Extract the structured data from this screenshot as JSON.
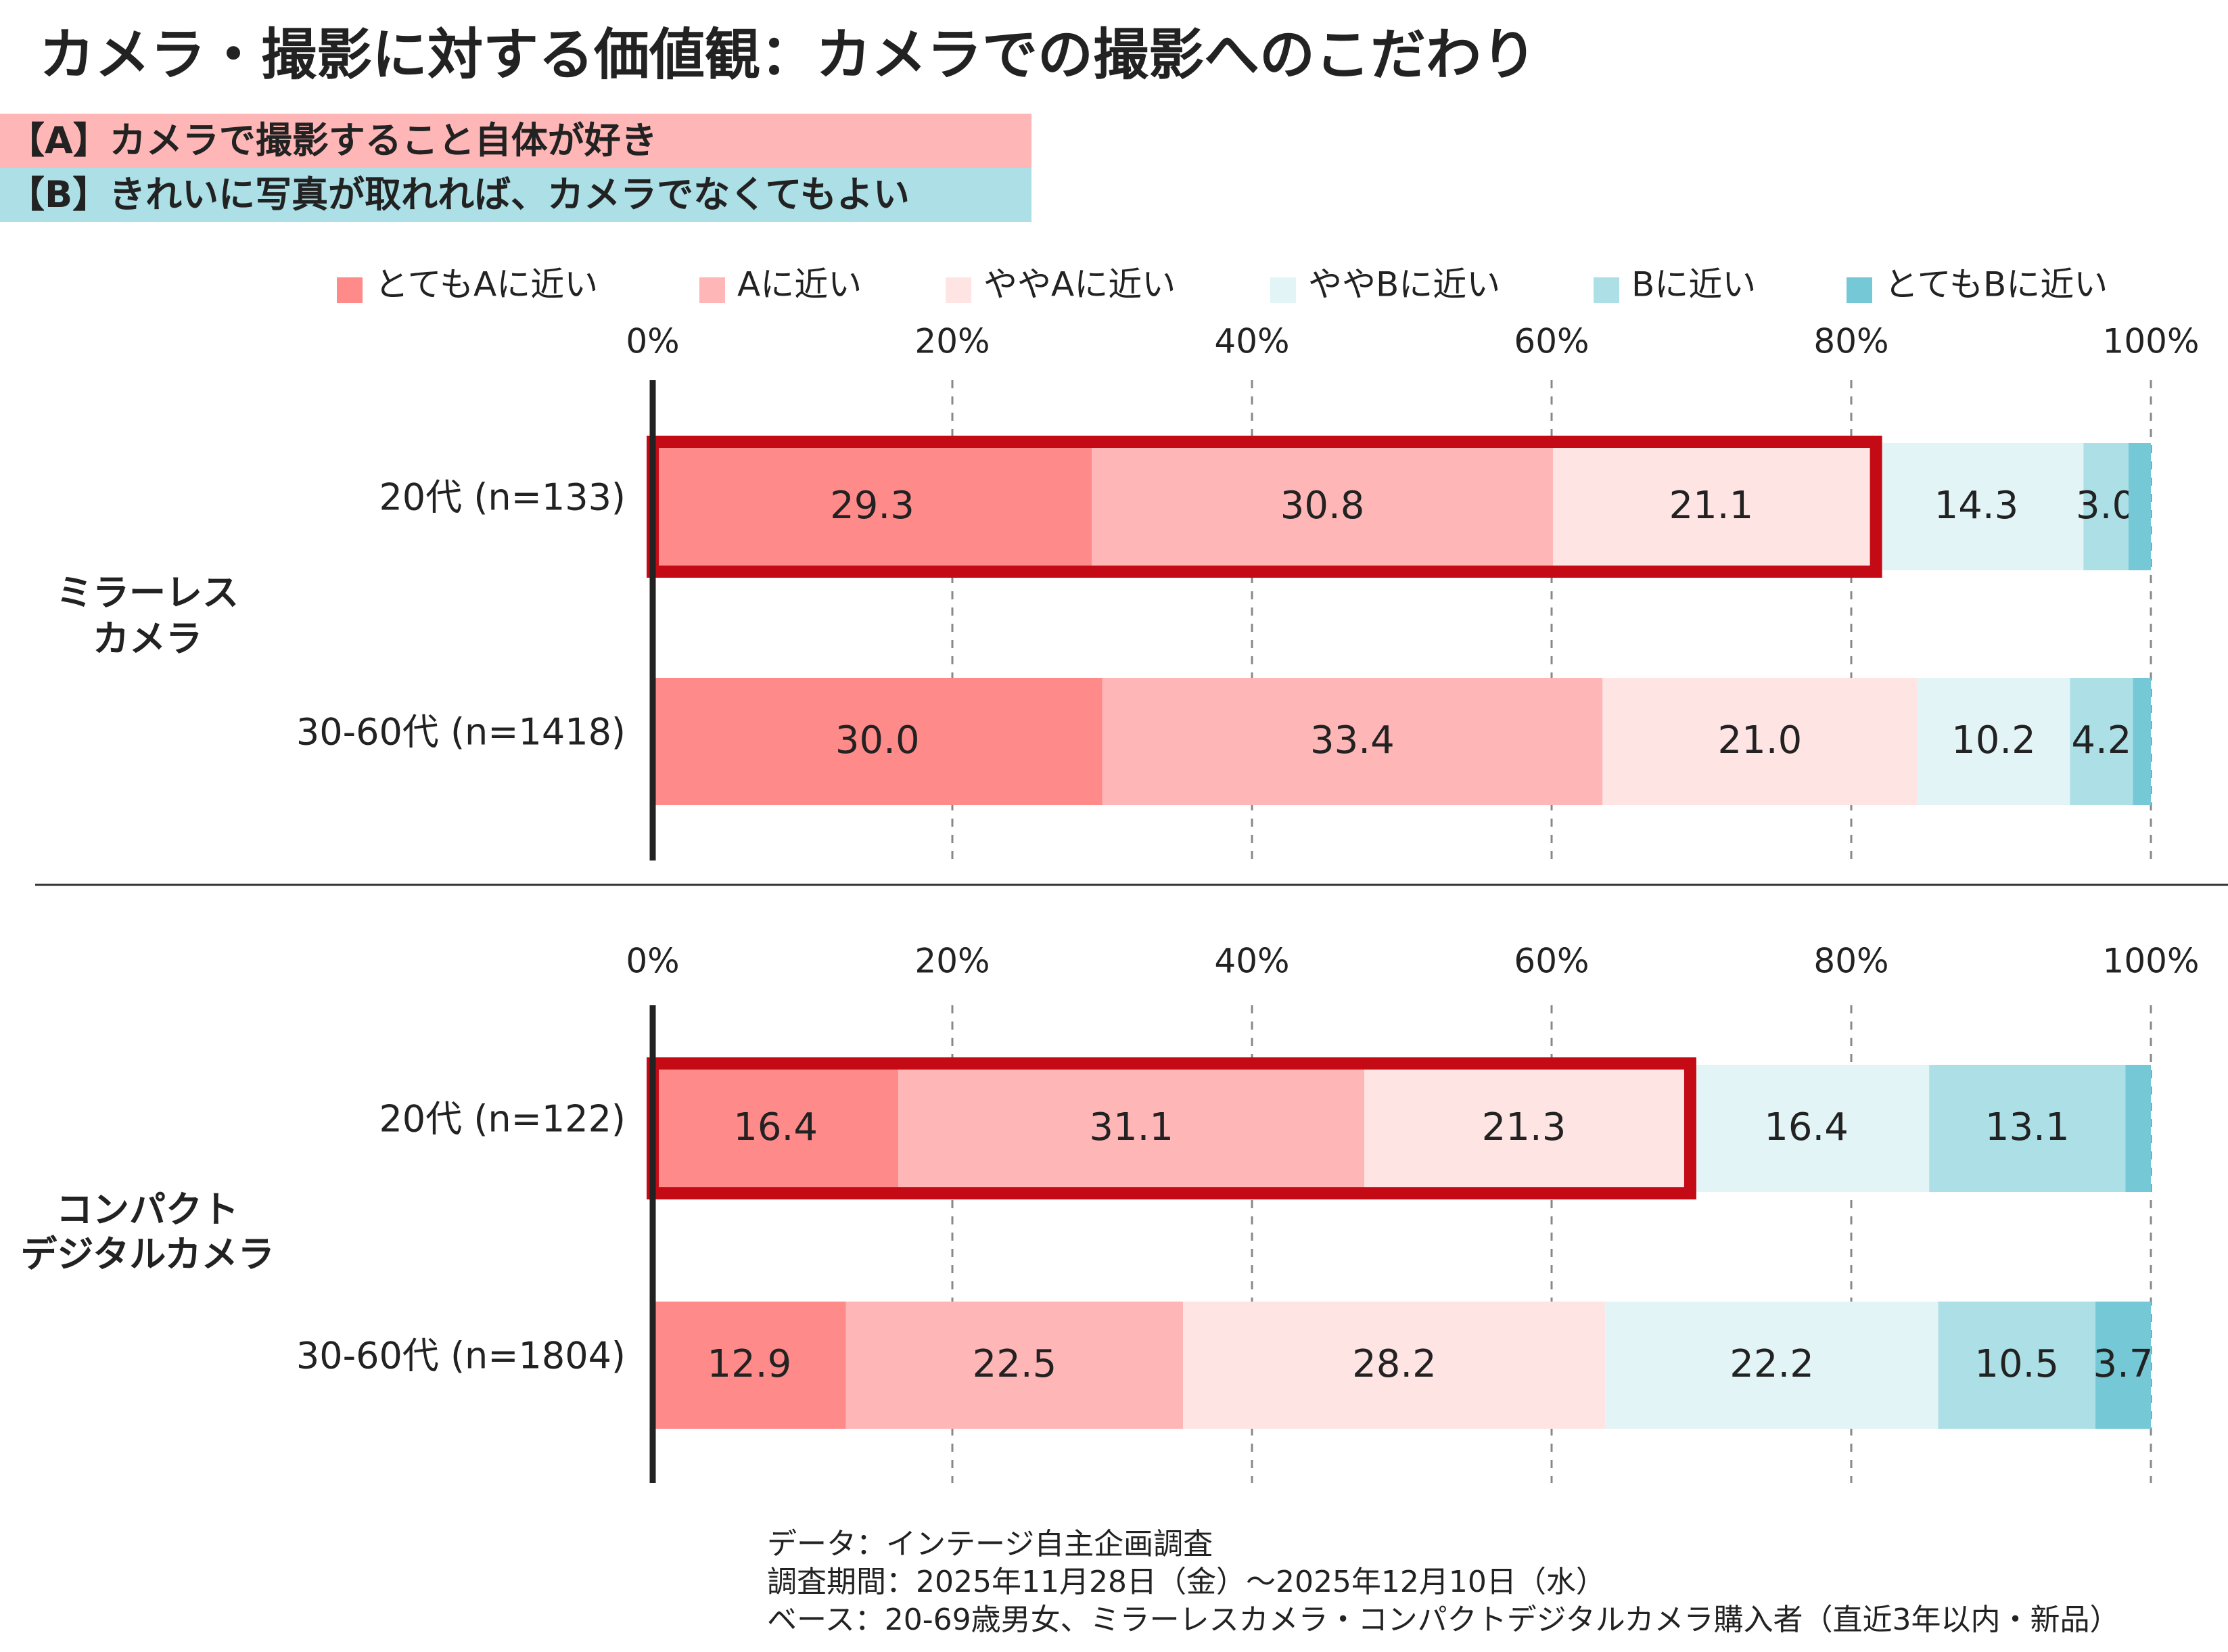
{
  "title": "カメラ・撮影に対する価値観：カメラでの撮影へのこだわり",
  "statement_a": "【A】カメラで撮影すること自体が好き",
  "statement_b": "【B】きれいに写真が取れれば、カメラでなくてもよい",
  "colors": {
    "very_a": "#ff8a8a",
    "a": "#ffb6b6",
    "somewhat_a": "#ffe4e4",
    "somewhat_b": "#e3f4f7",
    "b": "#acdfe6",
    "very_b": "#75c8d6",
    "highlight": "#c40a14"
  },
  "notes": [
    "データ：インテージ自主企画調査",
    "調査期間：2025年11月28日（金）～2025年12月10日（水）",
    "ベース：20-69歳男女、ミラーレスカメラ・コンパクトデジタルカメラ購入者（直近3年以内・新品）"
  ],
  "chart_data": {
    "type": "bar",
    "orientation": "horizontal",
    "stacked": true,
    "xlim": [
      0,
      100
    ],
    "ticks": [
      "0%",
      "20%",
      "40%",
      "60%",
      "80%",
      "100%"
    ],
    "legend": [
      "とてもAに近い",
      "Aに近い",
      "ややAに近い",
      "ややBに近い",
      "Bに近い",
      "とてもBに近い"
    ],
    "legend_position": "top",
    "grid": "dashed vertical",
    "panels": [
      {
        "group": "ミラーレスカメラ",
        "group_lines": [
          "ミラーレス",
          "カメラ"
        ],
        "rows": [
          {
            "label": "20代 (n=133)",
            "values": [
              29.3,
              30.8,
              21.1,
              14.3,
              3.0,
              1.5
            ],
            "highlight_sum": 81.2
          },
          {
            "label": "30-60代 (n=1418)",
            "values": [
              30.0,
              33.4,
              21.0,
              10.2,
              4.2,
              1.2
            ],
            "highlight_sum": null
          }
        ]
      },
      {
        "group": "コンパクトデジタルカメラ",
        "group_lines": [
          "コンパクト",
          "デジタルカメラ"
        ],
        "rows": [
          {
            "label": "20代 (n=122)",
            "values": [
              16.4,
              31.1,
              21.3,
              16.4,
              13.1,
              1.7
            ],
            "highlight_sum": 68.8
          },
          {
            "label": "30-60代 (n=1804)",
            "values": [
              12.9,
              22.5,
              28.2,
              22.2,
              10.5,
              3.7
            ],
            "highlight_sum": null
          }
        ]
      }
    ]
  }
}
